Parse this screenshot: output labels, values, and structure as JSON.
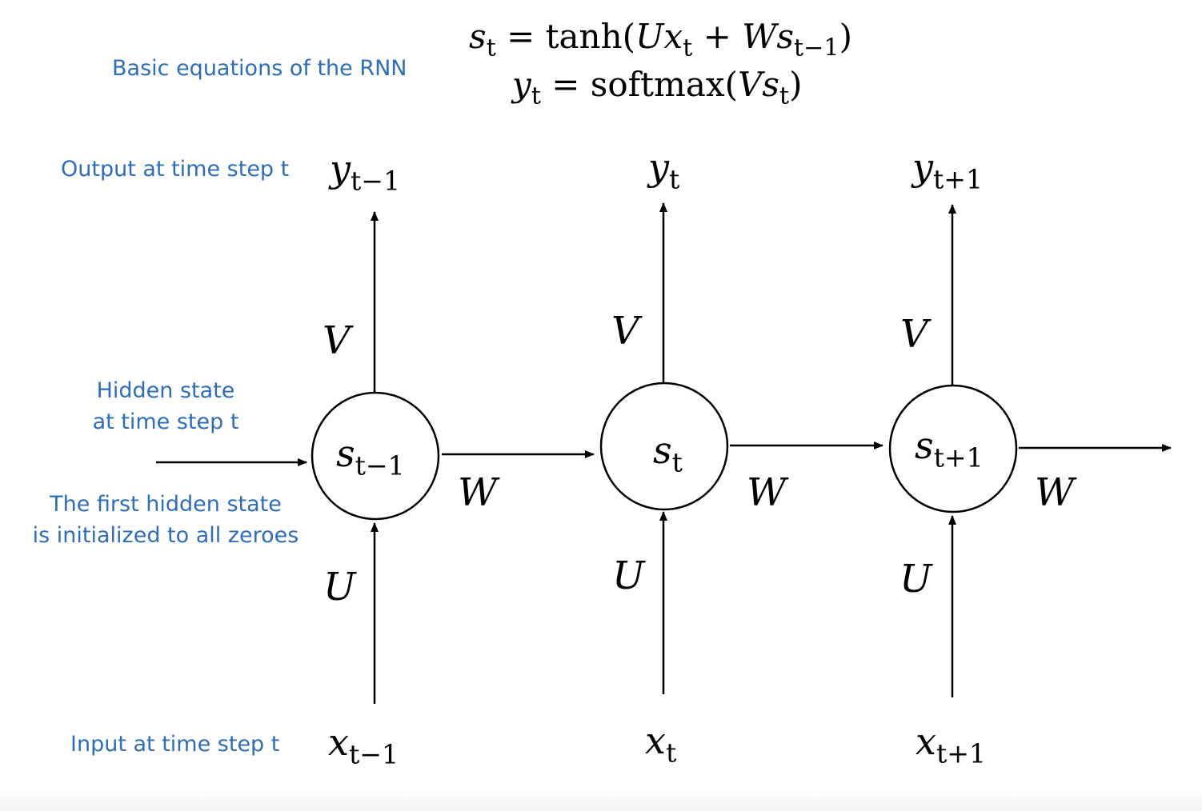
{
  "notes": {
    "equations_label": "Basic equations of the RNN",
    "output_label": "Output at time step t",
    "hidden_label_line1": "Hidden state",
    "hidden_label_line2": "at time step t",
    "first_hidden_line1": "The first hidden state",
    "first_hidden_line2": "is initialized to all zeroes",
    "input_label": "Input at time step t"
  },
  "equations": {
    "eq1_lhs": "s",
    "eq1_lhs_sub": "t",
    "eq1_eq": "= tanh(",
    "eq1_U": "U",
    "eq1_x": "x",
    "eq1_x_sub": "t",
    "eq1_plus": " + ",
    "eq1_W": "W",
    "eq1_s": "s",
    "eq1_s_sub": "t−1",
    "eq1_close": ")",
    "eq2_lhs": "y",
    "eq2_lhs_sub": "t",
    "eq2_eq": "= softmax(",
    "eq2_V": "V",
    "eq2_s": "s",
    "eq2_s_sub": "t",
    "eq2_close": ")"
  },
  "steps": [
    {
      "y": "y",
      "y_sub": "t−1",
      "s": "s",
      "s_sub": "t−1",
      "x": "x",
      "x_sub": "t−1",
      "V": "V",
      "U": "U",
      "W": "W"
    },
    {
      "y": "y",
      "y_sub": "t",
      "s": "s",
      "s_sub": "t",
      "x": "x",
      "x_sub": "t",
      "V": "V",
      "U": "U",
      "W": "W"
    },
    {
      "y": "y",
      "y_sub": "t+1",
      "s": "s",
      "s_sub": "t+1",
      "x": "x",
      "x_sub": "t+1",
      "V": "V",
      "U": "U",
      "W": "W"
    }
  ],
  "colors": {
    "note": "#2f6db5",
    "line": "#000000"
  }
}
